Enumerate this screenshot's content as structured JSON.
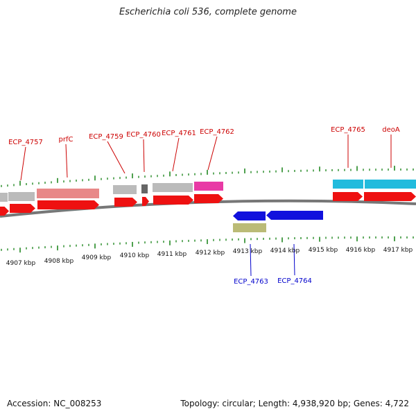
{
  "title": "Escherichia coli 536, complete genome",
  "footer": {
    "accession": "Accession: NC_008253",
    "stats": "Topology: circular; Length: 4,938,920 bp; Genes: 4,722"
  },
  "colors": {
    "forward_label": "#cc0000",
    "reverse_label": "#0000cc",
    "cds_forward": "#ee1111",
    "cds_reverse": "#1111dd",
    "tick_green": "#228822",
    "backbone": "#777777",
    "gene_grey": "#bbbbbb",
    "gene_dark": "#666666",
    "gene_pink": "#e88888",
    "gene_magenta": "#e83aa5",
    "gene_cyan": "#22bbdd",
    "gene_olive": "#bbbb77"
  },
  "axis_labels": [
    "4907 kbp",
    "4908 kbp",
    "4909 kbp",
    "4910 kbp",
    "4911 kbp",
    "4912 kbp",
    "4913 kbp",
    "4914 kbp",
    "4915 kbp",
    "4916 kbp",
    "4917 kbp"
  ],
  "genes_top": [
    {
      "label": "ECP_4757"
    },
    {
      "label": "prfC"
    },
    {
      "label": "ECP_4759"
    },
    {
      "label": "ECP_4760"
    },
    {
      "label": "ECP_4761"
    },
    {
      "label": "ECP_4762"
    },
    {
      "label": "ECP_4765"
    },
    {
      "label": "deoA"
    }
  ],
  "genes_bottom": [
    {
      "label": "ECP_4763"
    },
    {
      "label": "ECP_4764"
    }
  ]
}
